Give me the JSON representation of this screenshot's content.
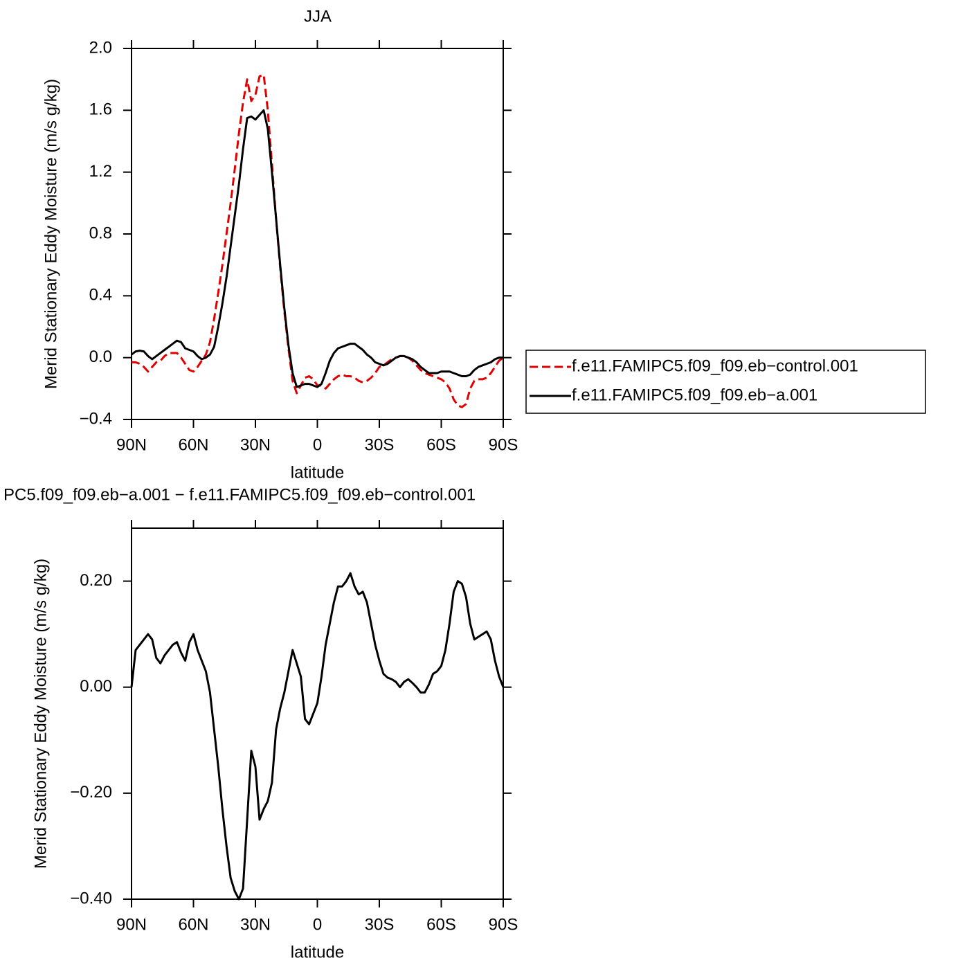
{
  "chart_data": [
    {
      "type": "line",
      "title": "JJA",
      "xlabel": "latitude",
      "ylabel": "Merid Stationary Eddy Moisture (m/s g/kg)",
      "x": [
        90,
        88,
        86,
        84,
        82,
        80,
        78,
        76,
        74,
        72,
        70,
        68,
        66,
        64,
        62,
        60,
        58,
        56,
        54,
        52,
        50,
        48,
        46,
        44,
        42,
        40,
        38,
        36,
        34,
        32,
        30,
        28,
        26,
        24,
        22,
        20,
        18,
        16,
        14,
        12,
        10,
        8,
        6,
        4,
        2,
        0,
        -2,
        -4,
        -6,
        -8,
        -10,
        -12,
        -14,
        -16,
        -18,
        -20,
        -22,
        -24,
        -26,
        -28,
        -30,
        -32,
        -34,
        -36,
        -38,
        -40,
        -42,
        -44,
        -46,
        -48,
        -50,
        -52,
        -54,
        -56,
        -58,
        -60,
        -62,
        -64,
        -66,
        -68,
        -70,
        -72,
        -74,
        -76,
        -78,
        -80,
        -82,
        -84,
        -86,
        -88,
        -90
      ],
      "xlim": [
        90,
        -90
      ],
      "xticks": [
        {
          "value": 90,
          "label": "90N"
        },
        {
          "value": 60,
          "label": "60N"
        },
        {
          "value": 30,
          "label": "30N"
        },
        0,
        {
          "value": -30,
          "label": "30S"
        },
        {
          "value": -60,
          "label": "60S"
        },
        {
          "value": -90,
          "label": "90S"
        }
      ],
      "ylim": [
        -0.4,
        2.0
      ],
      "yticks": [
        {
          "value": -0.4,
          "label": "−0.4"
        },
        {
          "value": 0,
          "label": "0.0"
        },
        {
          "value": 0.4,
          "label": "0.4"
        },
        {
          "value": 0.8,
          "label": "0.8"
        },
        {
          "value": 1.2,
          "label": "1.2"
        },
        {
          "value": 1.6,
          "label": "1.6"
        },
        {
          "value": 2.0,
          "label": "2.0"
        }
      ],
      "legend": "right",
      "series": [
        {
          "name": "f.e11.FAMIPC5.f09_f09.eb−control.001",
          "color": "#e00000",
          "style": "dashed",
          "values": [
            -0.03,
            -0.03,
            -0.04,
            -0.06,
            -0.09,
            -0.06,
            -0.03,
            -0.02,
            0.01,
            0.03,
            0.03,
            0.03,
            0.0,
            -0.04,
            -0.08,
            -0.09,
            -0.06,
            -0.02,
            0.02,
            0.1,
            0.25,
            0.42,
            0.6,
            0.8,
            1.0,
            1.22,
            1.45,
            1.65,
            1.8,
            1.66,
            1.7,
            1.82,
            1.83,
            1.6,
            1.25,
            0.9,
            0.58,
            0.3,
            0.06,
            -0.15,
            -0.23,
            -0.18,
            -0.13,
            -0.12,
            -0.14,
            -0.18,
            -0.18,
            -0.2,
            -0.17,
            -0.14,
            -0.12,
            -0.11,
            -0.12,
            -0.12,
            -0.13,
            -0.15,
            -0.16,
            -0.15,
            -0.13,
            -0.1,
            -0.06,
            -0.05,
            -0.03,
            -0.01,
            0.0,
            0.01,
            0.01,
            0.0,
            -0.02,
            -0.05,
            -0.08,
            -0.1,
            -0.11,
            -0.12,
            -0.13,
            -0.14,
            -0.16,
            -0.2,
            -0.27,
            -0.31,
            -0.32,
            -0.3,
            -0.2,
            -0.15,
            -0.14,
            -0.14,
            -0.13,
            -0.1,
            -0.06,
            -0.02,
            0.0
          ]
        },
        {
          "name": "f.e11.FAMIPC5.f09_f09.eb−a.001",
          "color": "#000000",
          "style": "solid",
          "values": [
            0.02,
            0.04,
            0.045,
            0.04,
            0.01,
            -0.01,
            0.01,
            0.03,
            0.05,
            0.07,
            0.09,
            0.11,
            0.1,
            0.06,
            0.05,
            0.04,
            0.01,
            -0.01,
            0.0,
            0.02,
            0.07,
            0.2,
            0.35,
            0.52,
            0.72,
            0.92,
            1.12,
            1.35,
            1.55,
            1.56,
            1.54,
            1.57,
            1.6,
            1.48,
            1.2,
            0.9,
            0.6,
            0.32,
            0.08,
            -0.1,
            -0.19,
            -0.18,
            -0.17,
            -0.17,
            -0.18,
            -0.19,
            -0.17,
            -0.1,
            -0.02,
            0.03,
            0.06,
            0.07,
            0.08,
            0.09,
            0.09,
            0.07,
            0.05,
            0.02,
            0.0,
            -0.03,
            -0.04,
            -0.05,
            -0.04,
            -0.02,
            0.0,
            0.01,
            0.01,
            0.0,
            -0.01,
            -0.03,
            -0.06,
            -0.08,
            -0.1,
            -0.1,
            -0.1,
            -0.09,
            -0.09,
            -0.09,
            -0.1,
            -0.11,
            -0.12,
            -0.12,
            -0.11,
            -0.08,
            -0.06,
            -0.05,
            -0.04,
            -0.03,
            -0.01,
            0.0,
            0.0
          ]
        }
      ]
    },
    {
      "type": "line",
      "title": "PC5.f09_f09.eb−a.001  −  f.e11.FAMIPC5.f09_f09.eb−control.001",
      "xlabel": "latitude",
      "ylabel": "Merid Stationary Eddy Moisture (m/s g/kg)",
      "x": [
        90,
        88,
        86,
        84,
        82,
        80,
        78,
        76,
        74,
        72,
        70,
        68,
        66,
        64,
        62,
        60,
        58,
        56,
        54,
        52,
        50,
        48,
        46,
        44,
        42,
        40,
        38,
        36,
        34,
        32,
        30,
        28,
        26,
        24,
        22,
        20,
        18,
        16,
        14,
        12,
        10,
        8,
        6,
        4,
        2,
        0,
        -2,
        -4,
        -6,
        -8,
        -10,
        -12,
        -14,
        -16,
        -18,
        -20,
        -22,
        -24,
        -26,
        -28,
        -30,
        -32,
        -34,
        -36,
        -38,
        -40,
        -42,
        -44,
        -46,
        -48,
        -50,
        -52,
        -54,
        -56,
        -58,
        -60,
        -62,
        -64,
        -66,
        -68,
        -70,
        -72,
        -74,
        -76,
        -78,
        -80,
        -82,
        -84,
        -86,
        -88,
        -90
      ],
      "xlim": [
        90,
        -90
      ],
      "xticks": [
        {
          "value": 90,
          "label": "90N"
        },
        {
          "value": 60,
          "label": "60N"
        },
        {
          "value": 30,
          "label": "30N"
        },
        0,
        {
          "value": -30,
          "label": "30S"
        },
        {
          "value": -60,
          "label": "60S"
        },
        {
          "value": -90,
          "label": "90S"
        }
      ],
      "ylim": [
        -0.4,
        0.3
      ],
      "yticks": [
        {
          "value": -0.4,
          "label": "−0.40"
        },
        {
          "value": -0.2,
          "label": "−0.20"
        },
        {
          "value": 0,
          "label": "0.00"
        },
        {
          "value": 0.2,
          "label": "0.20"
        }
      ],
      "series": [
        {
          "color": "#000000",
          "style": "solid",
          "values": [
            0.0,
            0.07,
            0.08,
            0.09,
            0.1,
            0.09,
            0.055,
            0.045,
            0.06,
            0.07,
            0.08,
            0.085,
            0.065,
            0.05,
            0.085,
            0.1,
            0.07,
            0.05,
            0.03,
            -0.01,
            -0.08,
            -0.15,
            -0.23,
            -0.3,
            -0.36,
            -0.385,
            -0.4,
            -0.38,
            -0.25,
            -0.12,
            -0.15,
            -0.25,
            -0.23,
            -0.215,
            -0.18,
            -0.08,
            -0.04,
            -0.01,
            0.03,
            0.07,
            0.045,
            0.02,
            -0.06,
            -0.07,
            -0.05,
            -0.03,
            0.02,
            0.08,
            0.12,
            0.16,
            0.19,
            0.19,
            0.2,
            0.215,
            0.19,
            0.175,
            0.18,
            0.16,
            0.12,
            0.08,
            0.05,
            0.025,
            0.018,
            0.015,
            0.01,
            0.0,
            0.01,
            0.015,
            0.008,
            0.0,
            -0.01,
            -0.01,
            0.005,
            0.025,
            0.03,
            0.04,
            0.07,
            0.12,
            0.18,
            0.2,
            0.195,
            0.17,
            0.12,
            0.09,
            0.095,
            0.1,
            0.105,
            0.09,
            0.05,
            0.02,
            0.0
          ]
        }
      ]
    }
  ]
}
